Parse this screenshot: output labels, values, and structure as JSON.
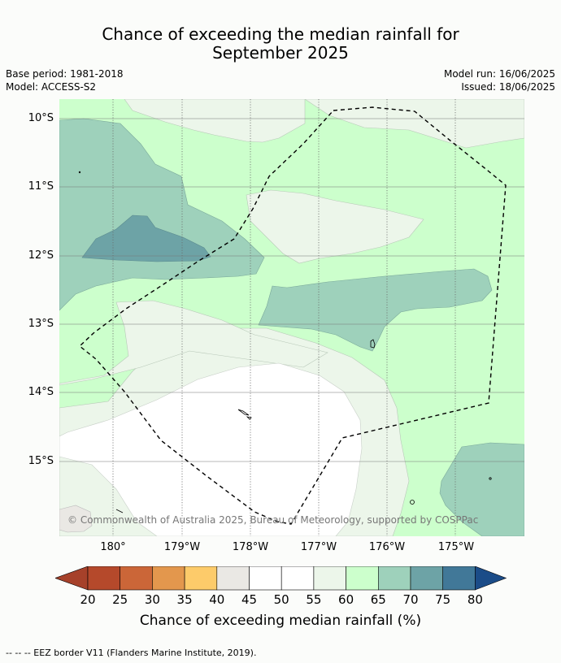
{
  "title_line1": "Chance of exceeding the median rainfall for",
  "title_line2": "September 2025",
  "base_period": "Base period: 1981-2018",
  "model": "Model: ACCESS-S2",
  "model_run": "Model run: 16/06/2025",
  "issued": "Issued: 18/06/2025",
  "lat_labels": [
    "10°S",
    "11°S",
    "12°S",
    "13°S",
    "14°S",
    "15°S"
  ],
  "lon_labels": [
    "180°",
    "179°W",
    "178°W",
    "177°W",
    "176°W",
    "175°W"
  ],
  "copyright": "© Commonwealth of Australia 2025, Bureau of Meteorology, supported by COSPPac",
  "colorbar": {
    "ticks": [
      "20",
      "25",
      "30",
      "35",
      "40",
      "45",
      "50",
      "55",
      "60",
      "65",
      "70",
      "75",
      "80"
    ],
    "label": "Chance of exceeding median rainfall (%)",
    "colors": [
      "#a6412a",
      "#b5492b",
      "#cb6638",
      "#e3974d",
      "#fdcb6a",
      "#eae8e4",
      "#ffffff",
      "#ffffff",
      "#ecf6ea",
      "#ccffcc",
      "#9ed1bb",
      "#6da3a6",
      "#417898",
      "#1b4c88"
    ]
  },
  "footer": "--  --  -- EEZ border V11 (Flanders Marine Institute, 2019)."
}
